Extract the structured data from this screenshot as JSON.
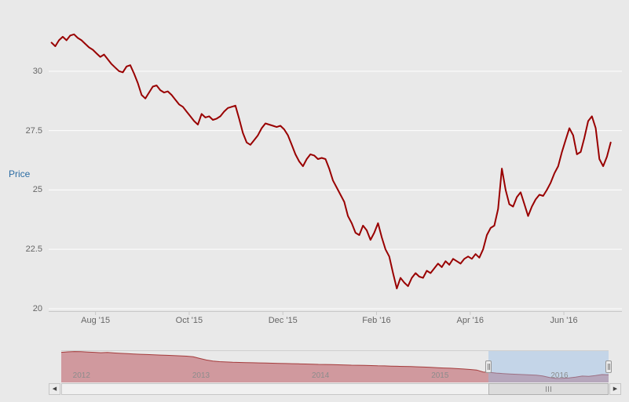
{
  "page": {
    "background": "#e9e9e9"
  },
  "scrollbar": {
    "left_arrow_glyph": "◀",
    "right_arrow_glyph": "▶"
  },
  "chart_data": [
    {
      "id": "price-chart",
      "type": "line",
      "title": "",
      "ylabel": "Price",
      "ylabel_color": "#2b6ca3",
      "label_color": "#666666",
      "gridline_color": "#ffffff",
      "axis_line_color": "#c8c8c8",
      "grid": true,
      "legend": "none",
      "y_ticks": [
        20,
        22.5,
        25,
        27.5,
        30
      ],
      "ylim": [
        19.9,
        32.6
      ],
      "x_axis": {
        "min": 2015.5,
        "max": 2016.52,
        "ticks": [
          {
            "label": "Aug '15",
            "t": 2015.5833
          },
          {
            "label": "Oct '15",
            "t": 2015.75
          },
          {
            "label": "Dec '15",
            "t": 2015.9167
          },
          {
            "label": "Feb '16",
            "t": 2016.0833
          },
          {
            "label": "Apr '16",
            "t": 2016.25
          },
          {
            "label": "Jun '16",
            "t": 2016.4167
          }
        ]
      },
      "series": [
        {
          "name": "Price",
          "color": "#990000",
          "x_start": 2015.505,
          "x_end": 2016.5,
          "values": [
            31.2,
            31.05,
            31.3,
            31.45,
            31.3,
            31.5,
            31.55,
            31.4,
            31.3,
            31.15,
            31.0,
            30.9,
            30.75,
            30.6,
            30.7,
            30.5,
            30.3,
            30.15,
            30.0,
            29.95,
            30.2,
            30.25,
            29.9,
            29.5,
            29.0,
            28.85,
            29.1,
            29.35,
            29.4,
            29.2,
            29.1,
            29.15,
            29.0,
            28.8,
            28.6,
            28.5,
            28.3,
            28.1,
            27.9,
            27.75,
            28.2,
            28.05,
            28.1,
            27.95,
            28.0,
            28.1,
            28.3,
            28.45,
            28.5,
            28.55,
            28.0,
            27.4,
            27.0,
            26.9,
            27.1,
            27.3,
            27.6,
            27.8,
            27.75,
            27.7,
            27.65,
            27.7,
            27.55,
            27.3,
            26.9,
            26.5,
            26.2,
            26.0,
            26.3,
            26.5,
            26.45,
            26.3,
            26.35,
            26.3,
            25.9,
            25.4,
            25.1,
            24.8,
            24.5,
            23.9,
            23.6,
            23.2,
            23.1,
            23.5,
            23.3,
            22.9,
            23.2,
            23.6,
            23.0,
            22.5,
            22.2,
            21.5,
            20.85,
            21.3,
            21.1,
            20.95,
            21.3,
            21.5,
            21.35,
            21.3,
            21.6,
            21.5,
            21.7,
            21.9,
            21.75,
            22.0,
            21.85,
            22.1,
            22.0,
            21.9,
            22.1,
            22.2,
            22.1,
            22.3,
            22.15,
            22.5,
            23.1,
            23.4,
            23.5,
            24.2,
            25.9,
            25.0,
            24.4,
            24.3,
            24.7,
            24.9,
            24.4,
            23.9,
            24.3,
            24.6,
            24.8,
            24.75,
            25.0,
            25.3,
            25.7,
            26.0,
            26.6,
            27.1,
            27.6,
            27.3,
            26.5,
            26.6,
            27.2,
            27.9,
            28.1,
            27.6,
            26.3,
            26.0,
            26.4,
            27.0
          ]
        }
      ]
    },
    {
      "id": "navigator",
      "type": "area",
      "x_start": 2011.93,
      "x_end": 2016.51,
      "ylim": [
        15,
        64
      ],
      "line_color": "#a43b3b",
      "fill_color": "rgba(178,56,66,0.45)",
      "year_label_color": "#8c8c8c",
      "year_labels": [
        {
          "label": "2012",
          "t": 2012
        },
        {
          "label": "2013",
          "t": 2013
        },
        {
          "label": "2014",
          "t": 2014
        },
        {
          "label": "2015",
          "t": 2015
        },
        {
          "label": "2016",
          "t": 2016
        }
      ],
      "selection": {
        "from": 2015.505,
        "to": 2016.51,
        "fill": "rgba(145,185,230,0.42)"
      },
      "values": [
        62,
        62.8,
        63.3,
        63,
        62.5,
        62,
        61.4,
        61.8,
        61,
        60.4,
        60,
        59.5,
        59,
        58.6,
        58.2,
        57.8,
        57.4,
        57,
        56.5,
        56,
        55,
        52.5,
        50,
        48.5,
        47.5,
        47,
        46.5,
        46.2,
        46,
        45.8,
        45.5,
        45.2,
        45,
        44.8,
        44.5,
        44.3,
        44,
        43.8,
        43.5,
        43.2,
        43,
        42.8,
        42.6,
        42.3,
        42,
        41.8,
        41.6,
        41.3,
        41,
        40.8,
        40.5,
        40.2,
        40,
        39.8,
        39.4,
        39,
        38.5,
        38,
        37.6,
        37.2,
        36.6,
        36,
        35.2,
        34.4,
        31.3,
        30.6,
        29.6,
        28.8,
        28.2,
        27.8,
        27.3,
        26.8,
        26.3,
        25,
        22.8,
        21.2,
        21.5,
        22,
        23.3,
        24.9,
        24.5,
        25.8,
        27.3,
        26.9
      ]
    }
  ]
}
